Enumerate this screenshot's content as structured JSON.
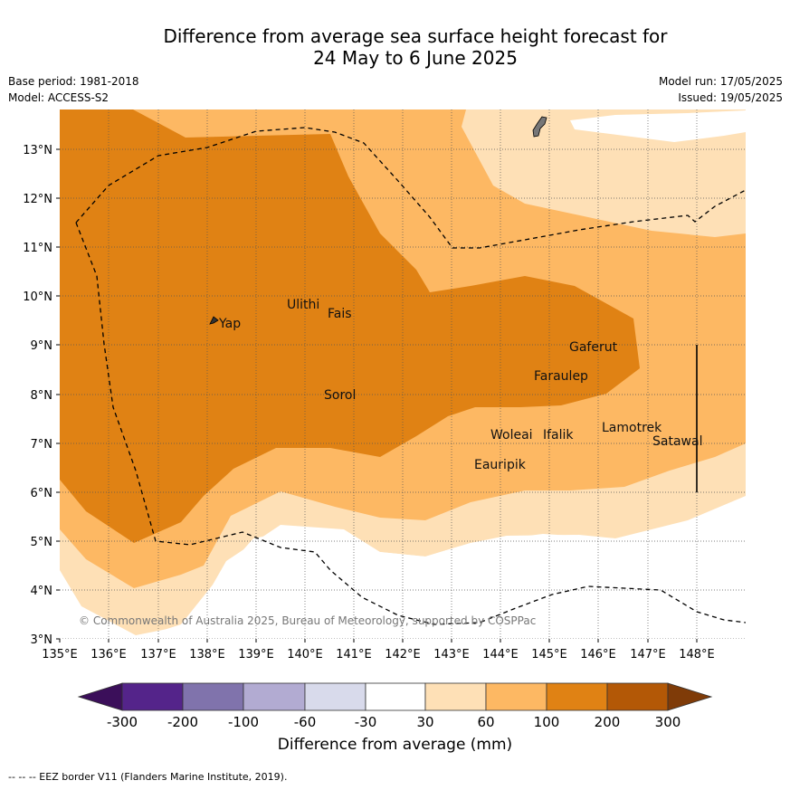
{
  "title_line1": "Difference from average sea surface height forecast for",
  "title_line2": "24 May to 6 June 2025",
  "meta_left": [
    "Base period: 1981-2018",
    "Model: ACCESS-S2"
  ],
  "meta_right": [
    "Model run: 17/05/2025",
    "Issued: 19/05/2025"
  ],
  "copyright": "© Commonwealth of Australia 2025, Bureau of Meteorology, supported by COSPPac",
  "footer": "-- -- -- EEZ border V11 (Flanders Marine Institute, 2019).",
  "colorbar_title": "Difference from average (mm)",
  "colorbar_ticks": [
    "-300",
    "-200",
    "-100",
    "-60",
    "-30",
    "30",
    "60",
    "100",
    "200",
    "300"
  ],
  "colorbar_colors": [
    "#3b0f5a",
    "#54248a",
    "#8073ac",
    "#b2abd2",
    "#d8daeb",
    "#ffffff",
    "#fee0b6",
    "#fdb863",
    "#e08214",
    "#b35806",
    "#7f3b08"
  ],
  "chart_data": {
    "type": "heatmap",
    "x_ticks": [
      "135°E",
      "136°E",
      "137°E",
      "138°E",
      "139°E",
      "140°E",
      "141°E",
      "142°E",
      "143°E",
      "144°E",
      "145°E",
      "146°E",
      "147°E",
      "148°E"
    ],
    "y_ticks": [
      "3°N",
      "4°N",
      "5°N",
      "6°N",
      "7°N",
      "8°N",
      "9°N",
      "10°N",
      "11°N",
      "12°N",
      "13°N"
    ],
    "xlim": [
      135,
      149
    ],
    "ylim": [
      3,
      13.8
    ],
    "grid": true,
    "places": [
      {
        "name": "Yap",
        "lon": 138.2,
        "lat": 9.5
      },
      {
        "name": "Ulithi",
        "lon": 139.7,
        "lat": 9.8
      },
      {
        "name": "Fais",
        "lon": 140.5,
        "lat": 9.6
      },
      {
        "name": "Gaferut",
        "lon": 145.3,
        "lat": 9.0
      },
      {
        "name": "Faraulep",
        "lon": 144.7,
        "lat": 8.4
      },
      {
        "name": "Sorol",
        "lon": 140.4,
        "lat": 8.0
      },
      {
        "name": "Woleai",
        "lon": 143.8,
        "lat": 7.2
      },
      {
        "name": "Ifalik",
        "lon": 144.5,
        "lat": 7.2
      },
      {
        "name": "Lamotrek",
        "lon": 146.2,
        "lat": 7.4
      },
      {
        "name": "Satawal",
        "lon": 147.1,
        "lat": 7.1
      },
      {
        "name": "Eauripik",
        "lon": 143.4,
        "lat": 6.6
      }
    ]
  }
}
